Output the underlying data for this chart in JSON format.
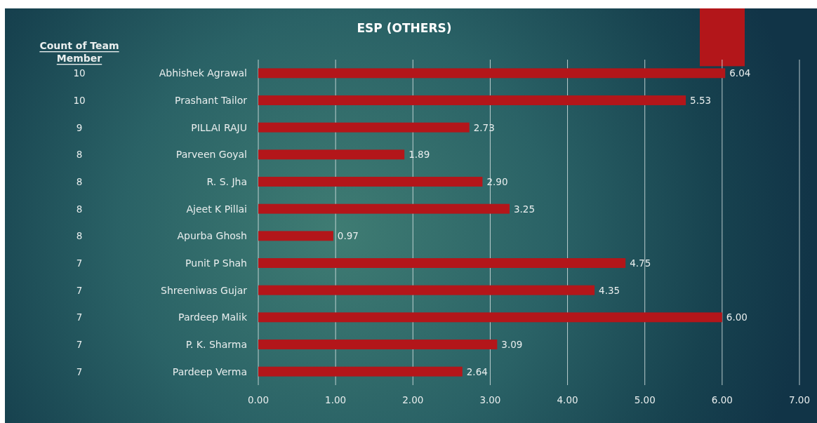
{
  "chart_data": {
    "type": "bar",
    "orientation": "horizontal",
    "title": "ESP (OTHERS)",
    "categories": [
      "Abhishek Agrawal",
      "Prashant Tailor",
      "PILLAI RAJU",
      "Parveen Goyal",
      "R. S. Jha",
      "Ajeet K Pillai",
      "Apurba Ghosh",
      "Punit P Shah",
      "Shreeniwas Gujar",
      "Pardeep Malik",
      "P. K. Sharma",
      "Pardeep Verma"
    ],
    "values": [
      6.04,
      5.53,
      2.73,
      1.89,
      2.9,
      3.25,
      0.97,
      4.75,
      4.35,
      6.0,
      3.09,
      2.64
    ],
    "value_labels": [
      "6.04",
      "5.53",
      "2.73",
      "1.89",
      "2.90",
      "3.25",
      "0.97",
      "4.75",
      "4.35",
      "6.00",
      "3.09",
      "2.64"
    ],
    "color": "#b3161a",
    "xlim": [
      0,
      7
    ],
    "xticks": [
      {
        "value": 0,
        "label": "0.00"
      },
      {
        "value": 1,
        "label": "1.00"
      },
      {
        "value": 2,
        "label": "2.00"
      },
      {
        "value": 3,
        "label": "3.00"
      },
      {
        "value": 4,
        "label": "4.00"
      },
      {
        "value": 5,
        "label": "5.00"
      },
      {
        "value": 6,
        "label": "6.00"
      },
      {
        "value": 7,
        "label": "7.00"
      }
    ],
    "grid": "x",
    "annotations": [
      "Count of Team Member",
      "10",
      "10",
      "9",
      "8",
      "8",
      "8",
      "8",
      "7",
      "7",
      "7",
      "7",
      "7"
    ]
  }
}
